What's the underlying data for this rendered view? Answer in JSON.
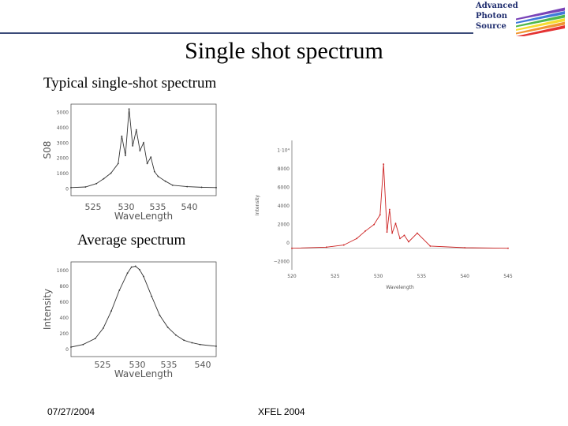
{
  "header": {
    "title": "Single shot spectrum",
    "logo_text": "Advanced\nPhoton\nSource",
    "logo_colors": [
      "#e11d1d",
      "#f08a1c",
      "#f5d91a",
      "#3db03a",
      "#2a6bd6",
      "#6a2fb0"
    ]
  },
  "sections": {
    "single_shot_caption": "Typical single-shot spectrum",
    "average_caption": "Average spectrum"
  },
  "footer": {
    "date": "07/27/2004",
    "conference": "XFEL 2004"
  },
  "chart_data": [
    {
      "type": "line",
      "ylabel": "S08",
      "xlabel": "WaveLength",
      "xticks": [
        "525",
        "530",
        "535",
        "540"
      ],
      "yticks": [
        "5000",
        "4000",
        "3000",
        "2000",
        "1000",
        "0"
      ],
      "xlim": [
        522,
        542
      ],
      "ylim": [
        -500,
        5200
      ],
      "color": "#333333",
      "grid": false,
      "x": [
        522,
        524,
        525.5,
        526.5,
        527.5,
        528.5,
        529,
        529.5,
        530,
        530.5,
        531,
        531.5,
        532,
        532.5,
        533,
        533.5,
        534,
        535,
        536,
        538,
        540,
        542
      ],
      "y": [
        0,
        40,
        250,
        550,
        900,
        1500,
        3200,
        2000,
        4900,
        2600,
        3600,
        2300,
        2800,
        1500,
        1900,
        1000,
        700,
        400,
        150,
        60,
        20,
        0
      ]
    },
    {
      "type": "line",
      "ylabel": "Intensity",
      "xlabel": "Wavelength",
      "xticks": [
        "520",
        "525",
        "530",
        "535",
        "540",
        "545"
      ],
      "yticks": [
        "1·10⁴",
        "8000",
        "6000",
        "4000",
        "2000",
        "0",
        "−2000"
      ],
      "xlim": [
        520,
        545
      ],
      "ylim": [
        -2000,
        10000
      ],
      "color": "#cc2222",
      "grid": false,
      "x": [
        520,
        524,
        526,
        527.5,
        528.5,
        529.5,
        530.2,
        530.6,
        531,
        531.3,
        531.6,
        532,
        532.5,
        533,
        533.5,
        534.5,
        536,
        540,
        545
      ],
      "y": [
        0,
        100,
        300,
        900,
        1600,
        2200,
        3100,
        7800,
        1500,
        3600,
        1400,
        2300,
        900,
        1200,
        600,
        1400,
        200,
        50,
        0
      ]
    },
    {
      "type": "line",
      "ylabel": "Intensity",
      "xlabel": "WaveLength",
      "xticks": [
        "525",
        "530",
        "535",
        "540"
      ],
      "yticks": [
        "1000",
        "800",
        "600",
        "400",
        "200",
        "0"
      ],
      "xlim": [
        522,
        540
      ],
      "ylim": [
        -50,
        1050
      ],
      "color": "#333333",
      "grid": false,
      "x": [
        522,
        523.5,
        525,
        526,
        527,
        528,
        529,
        529.5,
        530,
        530.5,
        531,
        532,
        533,
        534,
        535,
        536,
        537,
        538,
        540
      ],
      "y": [
        60,
        90,
        160,
        280,
        480,
        720,
        920,
        990,
        1000,
        960,
        880,
        650,
        430,
        290,
        200,
        140,
        110,
        90,
        70
      ]
    }
  ]
}
